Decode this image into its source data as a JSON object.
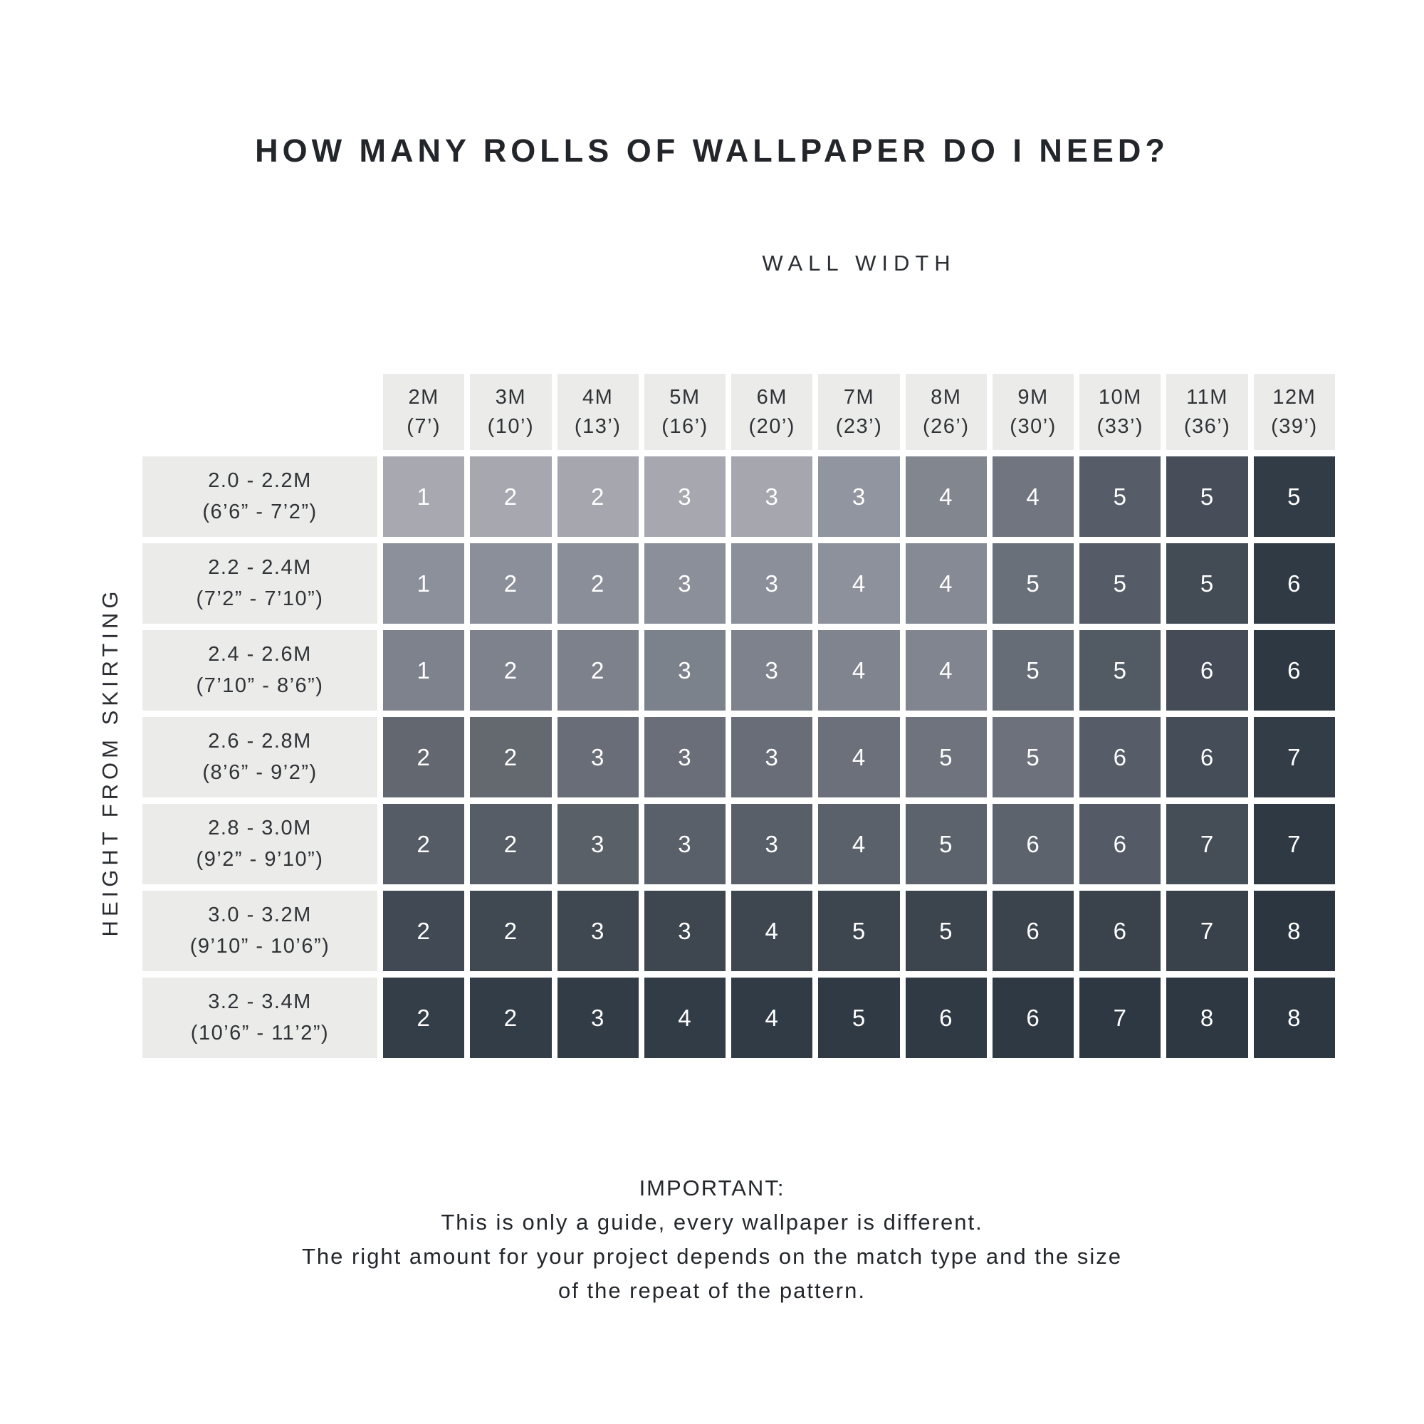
{
  "title": "HOW MANY ROLLS OF WALLPAPER DO I NEED?",
  "axes": {
    "column_axis_label": "WALL WIDTH",
    "row_axis_label": "HEIGHT FROM SKIRTING"
  },
  "footer": {
    "heading": "IMPORTANT:",
    "lines": [
      "This is only a guide, every wallpaper is different.",
      "The right amount for your project depends on the match type and the size",
      "of the repeat of the pattern."
    ]
  },
  "colors": {
    "background": "#ffffff",
    "header_bg": "#ebebe9",
    "header_text": "#2f3337",
    "title_text": "#22262a",
    "cell_text": "#ffffff"
  },
  "chart_data": {
    "type": "heatmap",
    "title": "HOW MANY ROLLS OF WALLPAPER DO I NEED?",
    "xlabel": "WALL WIDTH",
    "ylabel": "HEIGHT FROM SKIRTING",
    "columns": [
      {
        "metric": "2M",
        "imperial": "(7’)"
      },
      {
        "metric": "3M",
        "imperial": "(10’)"
      },
      {
        "metric": "4M",
        "imperial": "(13’)"
      },
      {
        "metric": "5M",
        "imperial": "(16’)"
      },
      {
        "metric": "6M",
        "imperial": "(20’)"
      },
      {
        "metric": "7M",
        "imperial": "(23’)"
      },
      {
        "metric": "8M",
        "imperial": "(26’)"
      },
      {
        "metric": "9M",
        "imperial": "(30’)"
      },
      {
        "metric": "10M",
        "imperial": "(33’)"
      },
      {
        "metric": "11M",
        "imperial": "(36’)"
      },
      {
        "metric": "12M",
        "imperial": "(39’)"
      }
    ],
    "rows": [
      {
        "metric": "2.0 - 2.2M",
        "imperial": "(6’6” - 7’2”)"
      },
      {
        "metric": "2.2 - 2.4M",
        "imperial": "(7’2” - 7’10”)"
      },
      {
        "metric": "2.4 - 2.6M",
        "imperial": "(7’10” - 8’6”)"
      },
      {
        "metric": "2.6 - 2.8M",
        "imperial": "(8’6” - 9’2”)"
      },
      {
        "metric": "2.8 - 3.0M",
        "imperial": "(9’2” - 9’10”)"
      },
      {
        "metric": "3.0 - 3.2M",
        "imperial": "(9’10” - 10’6”)"
      },
      {
        "metric": "3.2 - 3.4M",
        "imperial": "(10’6” - 11’2”)"
      }
    ],
    "values": [
      [
        1,
        2,
        2,
        3,
        3,
        3,
        4,
        4,
        5,
        5,
        5
      ],
      [
        1,
        2,
        2,
        3,
        3,
        4,
        4,
        5,
        5,
        5,
        6
      ],
      [
        1,
        2,
        2,
        3,
        3,
        4,
        4,
        5,
        5,
        6,
        6
      ],
      [
        2,
        2,
        3,
        3,
        3,
        4,
        5,
        5,
        6,
        6,
        7
      ],
      [
        2,
        2,
        3,
        3,
        3,
        4,
        5,
        6,
        6,
        7,
        7
      ],
      [
        2,
        2,
        3,
        3,
        4,
        5,
        5,
        6,
        6,
        7,
        8
      ],
      [
        2,
        2,
        3,
        4,
        4,
        5,
        6,
        6,
        7,
        8,
        8
      ]
    ],
    "cell_colors": [
      [
        "#a7a8b0",
        "#a6a7af",
        "#a5a6ae",
        "#a6a7af",
        "#a5a6ae",
        "#91959f",
        "#82868f",
        "#70757f",
        "#565d68",
        "#474e59",
        "#323c46"
      ],
      [
        "#8b909a",
        "#8b8f99",
        "#8a8e98",
        "#8b8f99",
        "#8a8f99",
        "#8d919b",
        "#858a94",
        "#6a707a",
        "#555c67",
        "#434b55",
        "#2f3a44"
      ],
      [
        "#7d828c",
        "#7d828d",
        "#7c818b",
        "#7c828c",
        "#7d828c",
        "#7f848e",
        "#80858f",
        "#676d77",
        "#525a64",
        "#454c57",
        "#2e3842"
      ],
      [
        "#63676f",
        "#64686f",
        "#686d77",
        "#6a6e79",
        "#696d77",
        "#6b707b",
        "#6e737d",
        "#6c717c",
        "#565d69",
        "#454d58",
        "#323d47"
      ],
      [
        "#565c65",
        "#575d66",
        "#596067",
        "#5a6069",
        "#595f68",
        "#5b616a",
        "#5d636d",
        "#5c636c",
        "#545b66",
        "#454d57",
        "#2e3943"
      ],
      [
        "#414954",
        "#404851",
        "#3f4751",
        "#3e4650",
        "#3e4650",
        "#3d454f",
        "#3c444e",
        "#3b434d",
        "#3a424c",
        "#39414b",
        "#2b3640"
      ],
      [
        "#343e49",
        "#333d48",
        "#323c47",
        "#323c46",
        "#313b45",
        "#303a45",
        "#2f3a44",
        "#2f3944",
        "#2e3843",
        "#2d3842",
        "#2c3741"
      ]
    ],
    "legend": "none",
    "grid": "off"
  }
}
